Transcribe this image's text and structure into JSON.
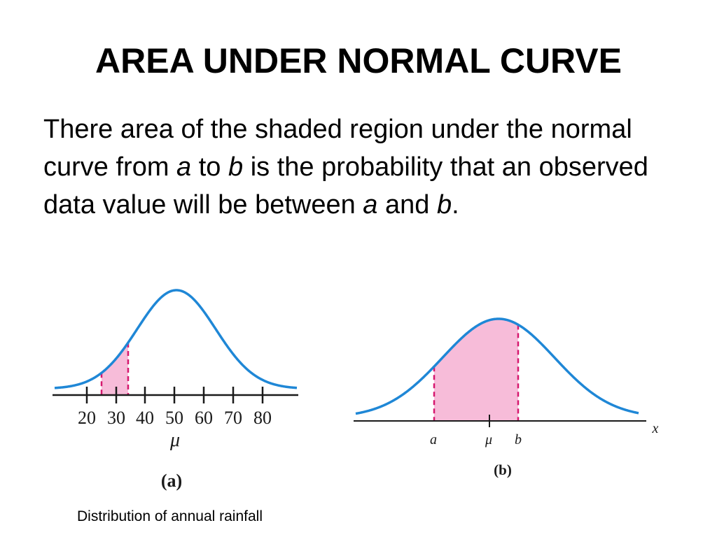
{
  "slide": {
    "title": "AREA UNDER NORMAL CURVE",
    "body": {
      "p1": "There area of the shaded region under the normal curve from ",
      "a": "a",
      "p2": " to ",
      "b": "b",
      "p3": " is the probability that an observed data value will be between ",
      "a2": "a",
      "p4": " and ",
      "b2": "b",
      "p5": "."
    },
    "caption": "Distribution of annual rainfall"
  },
  "colors": {
    "curve": "#1f87d6",
    "shade": "#f7bcd9",
    "dash": "#d6176e",
    "axis": "#1a1a1a"
  },
  "figure_a": {
    "ticks": [
      "20",
      "30",
      "40",
      "50",
      "60",
      "70",
      "80"
    ],
    "mu_label": "μ",
    "panel_label": "(a)",
    "shaded_from": 25,
    "shaded_to": 34
  },
  "figure_b": {
    "a_label": "a",
    "mu_label": "μ",
    "b_label": "b",
    "x_label": "x",
    "panel_label": "(b)"
  }
}
